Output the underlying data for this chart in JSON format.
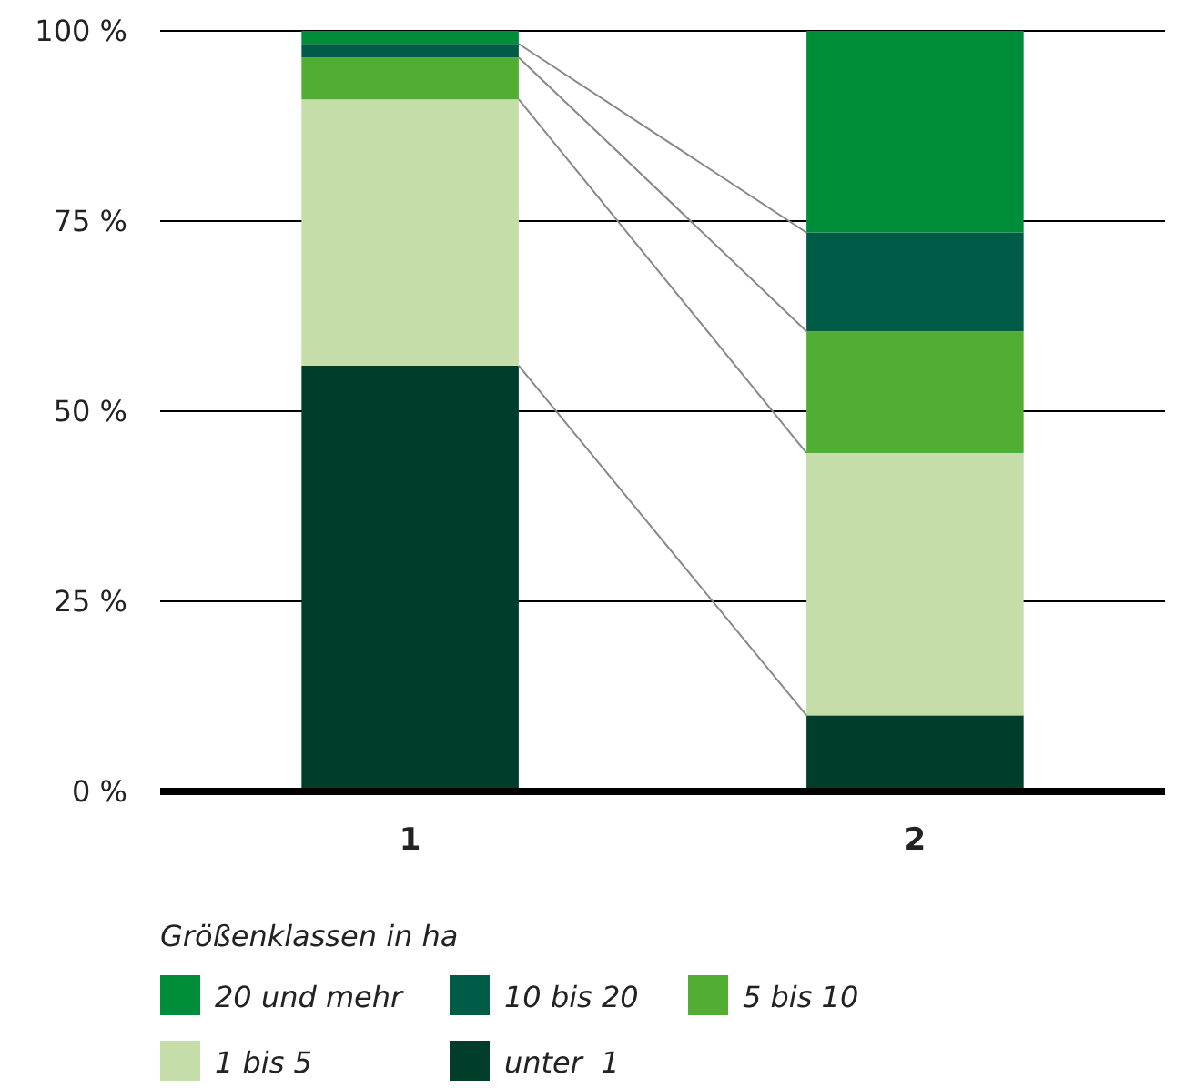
{
  "chart_data": {
    "type": "bar",
    "stacked": true,
    "categories": [
      "1",
      "2"
    ],
    "series": [
      {
        "name": "unter  1",
        "color": "#003d2a",
        "values": [
          56,
          10
        ]
      },
      {
        "name": "1 bis 5",
        "color": "#c5dda8",
        "values": [
          35,
          34.5
        ]
      },
      {
        "name": "5 bis 10",
        "color": "#52ae32",
        "values": [
          5.5,
          16
        ]
      },
      {
        "name": "10 bis 20",
        "color": "#005c46",
        "values": [
          1.8,
          13
        ]
      },
      {
        "name": "20 und mehr",
        "color": "#008d3a",
        "values": [
          1.7,
          26.5
        ]
      }
    ],
    "ylim": [
      0,
      100
    ],
    "yticks": [
      {
        "value": 0,
        "label": "0 %"
      },
      {
        "value": 25,
        "label": "25 %"
      },
      {
        "value": 50,
        "label": "50 %"
      },
      {
        "value": 75,
        "label": "75 %"
      },
      {
        "value": 100,
        "label": "100 %"
      }
    ],
    "grid": "y",
    "legend": "bottom",
    "legend_title": "Größenklassen in ha"
  }
}
